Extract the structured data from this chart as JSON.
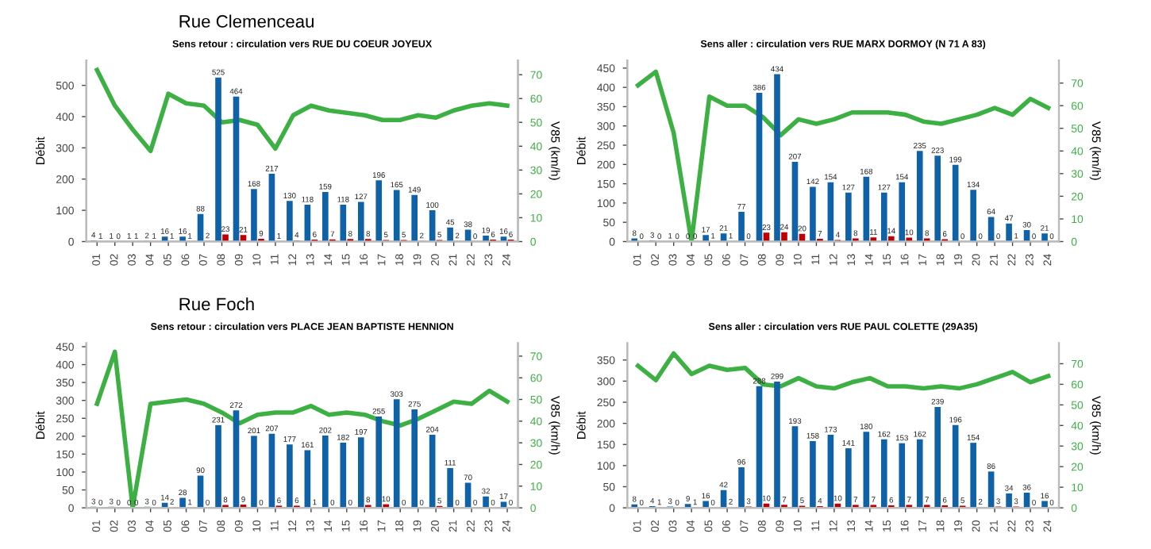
{
  "chart_data": [
    {
      "type": "bar",
      "title": "Rue Clemenceau",
      "subtitle": "Sens retour : circulation vers RUE DU COEUR JOYEUX",
      "ylabel": "Débit",
      "y2label": "V85 (km/h)",
      "categories": [
        "01",
        "02",
        "03",
        "04",
        "05",
        "06",
        "07",
        "08",
        "09",
        "10",
        "11",
        "12",
        "13",
        "14",
        "15",
        "16",
        "17",
        "18",
        "19",
        "20",
        "21",
        "22",
        "23",
        "24"
      ],
      "ylim": [
        0,
        580
      ],
      "yticks": [
        0,
        100,
        200,
        300,
        400,
        500
      ],
      "y2lim": [
        0,
        76
      ],
      "y2ticks": [
        0,
        10,
        20,
        30,
        40,
        50,
        60,
        70
      ],
      "series": [
        {
          "color": "#0f62a8",
          "values": [
            4,
            1,
            1,
            2,
            16,
            16,
            88,
            525,
            464,
            168,
            217,
            130,
            118,
            159,
            118,
            127,
            196,
            165,
            149,
            100,
            45,
            38,
            19,
            16
          ],
          "value_labels": [
            "4",
            "1",
            "1",
            "2",
            "16",
            "16",
            "88",
            "525",
            "464",
            "168",
            "217",
            "130",
            "118",
            "159",
            "118",
            "127",
            "196",
            "165",
            "149",
            "100",
            "45",
            "38",
            "19",
            "16"
          ]
        },
        {
          "color": "#c00000",
          "values": [
            1,
            0,
            1,
            1,
            1,
            1,
            2,
            23,
            21,
            9,
            1,
            4,
            6,
            7,
            8,
            8,
            5,
            5,
            2,
            5,
            2,
            0,
            6,
            6
          ],
          "value_labels": [
            "1",
            "0",
            "1",
            "1",
            "1",
            "1",
            "2",
            "23",
            "21",
            "9",
            "1",
            "4",
            "6",
            "7",
            "8",
            "8",
            "5",
            "5",
            "2",
            "5",
            "2",
            "0",
            "6",
            "6"
          ]
        },
        {
          "type": "line",
          "axis": "y2",
          "color": "#3cb043",
          "values": [
            72,
            57,
            47,
            38,
            62,
            58,
            57,
            50,
            51,
            49,
            39,
            53,
            57,
            55,
            54,
            53,
            51,
            51,
            53,
            52,
            55,
            57,
            58,
            57
          ]
        }
      ]
    },
    {
      "type": "bar",
      "subtitle": "Sens aller : circulation vers RUE MARX DORMOY (N 71 A 83)",
      "ylabel": "Débit",
      "y2label": "V85 (km/h)",
      "categories": [
        "01",
        "02",
        "03",
        "04",
        "05",
        "06",
        "07",
        "08",
        "09",
        "10",
        "11",
        "12",
        "13",
        "14",
        "15",
        "16",
        "17",
        "18",
        "19",
        "20",
        "21",
        "22",
        "23",
        "24"
      ],
      "ylim": [
        0,
        470
      ],
      "yticks": [
        0,
        50,
        100,
        150,
        200,
        250,
        300,
        350,
        400,
        450
      ],
      "y2lim": [
        0,
        80
      ],
      "y2ticks": [
        0,
        10,
        20,
        30,
        40,
        50,
        60,
        70
      ],
      "series": [
        {
          "color": "#0f62a8",
          "values": [
            8,
            3,
            1,
            0,
            17,
            21,
            77,
            386,
            434,
            207,
            142,
            154,
            127,
            168,
            127,
            154,
            235,
            223,
            199,
            134,
            64,
            47,
            30,
            21
          ],
          "value_labels": [
            "8",
            "3",
            "1",
            "0",
            "17",
            "21",
            "77",
            "386",
            "434",
            "207",
            "142",
            "154",
            "127",
            "168",
            "127",
            "154",
            "235",
            "223",
            "199",
            "134",
            "64",
            "47",
            "30",
            "21"
          ]
        },
        {
          "color": "#c00000",
          "values": [
            0,
            0,
            0,
            0,
            1,
            1,
            0,
            23,
            24,
            20,
            7,
            4,
            8,
            11,
            14,
            10,
            8,
            6,
            0,
            0,
            0,
            1,
            0,
            0
          ],
          "value_labels": [
            "0",
            "0",
            "0",
            "0",
            "1",
            "1",
            "0",
            "23",
            "24",
            "20",
            "7",
            "4",
            "8",
            "11",
            "14",
            "10",
            "8",
            "6",
            "0",
            "0",
            "0",
            "1",
            "0",
            "0"
          ]
        },
        {
          "type": "line",
          "axis": "y2",
          "color": "#3cb043",
          "values": [
            69,
            75,
            48,
            0,
            64,
            60,
            60,
            55,
            47,
            54,
            52,
            54,
            57,
            57,
            57,
            56,
            53,
            52,
            54,
            56,
            59,
            56,
            63,
            59
          ]
        }
      ]
    },
    {
      "type": "bar",
      "title": "Rue Foch",
      "subtitle": "Sens retour : circulation vers PLACE JEAN BAPTISTE HENNION",
      "ylabel": "Débit",
      "y2label": "V85 (km/h)",
      "categories": [
        "01",
        "02",
        "03",
        "04",
        "05",
        "06",
        "07",
        "08",
        "09",
        "10",
        "11",
        "12",
        "13",
        "14",
        "15",
        "16",
        "17",
        "18",
        "19",
        "20",
        "21",
        "22",
        "23",
        "24"
      ],
      "ylim": [
        0,
        460
      ],
      "yticks": [
        0,
        50,
        100,
        150,
        200,
        250,
        300,
        350,
        400,
        450
      ],
      "y2lim": [
        0,
        76
      ],
      "y2ticks": [
        0,
        10,
        20,
        30,
        40,
        50,
        60,
        70
      ],
      "series": [
        {
          "color": "#0f62a8",
          "values": [
            3,
            3,
            0,
            3,
            14,
            28,
            90,
            231,
            272,
            201,
            207,
            177,
            161,
            202,
            182,
            197,
            255,
            303,
            275,
            204,
            111,
            70,
            32,
            17
          ],
          "value_labels": [
            "3",
            "3",
            "0",
            "3",
            "14",
            "28",
            "90",
            "231",
            "272",
            "201",
            "207",
            "177",
            "161",
            "202",
            "182",
            "197",
            "255",
            "303",
            "275",
            "204",
            "111",
            "70",
            "32",
            "17"
          ]
        },
        {
          "color": "#c00000",
          "values": [
            0,
            0,
            0,
            0,
            2,
            1,
            0,
            8,
            9,
            0,
            6,
            6,
            1,
            0,
            0,
            8,
            10,
            0,
            0,
            5,
            0,
            0,
            0,
            0
          ],
          "value_labels": [
            "0",
            "0",
            "0",
            "0",
            "2",
            "1",
            "0",
            "8",
            "9",
            "0",
            "6",
            "6",
            "1",
            "0",
            "0",
            "8",
            "10",
            "0",
            "0",
            "5",
            "0",
            "0",
            "0",
            "0"
          ]
        },
        {
          "type": "line",
          "axis": "y2",
          "color": "#3cb043",
          "values": [
            48,
            72,
            0,
            48,
            49,
            50,
            48,
            44,
            39,
            43,
            44,
            44,
            47,
            43,
            44,
            43,
            40,
            38,
            41,
            45,
            49,
            48,
            54,
            49
          ]
        }
      ]
    },
    {
      "type": "bar",
      "subtitle": "Sens aller : circulation vers RUE PAUL COLETTE (29A35)",
      "ylabel": "Débit",
      "y2label": "V85 (km/h)",
      "categories": [
        "01",
        "02",
        "03",
        "04",
        "05",
        "06",
        "07",
        "08",
        "09",
        "10",
        "11",
        "12",
        "13",
        "14",
        "15",
        "16",
        "17",
        "18",
        "19",
        "20",
        "21",
        "22",
        "23",
        "24"
      ],
      "ylim": [
        0,
        390
      ],
      "yticks": [
        0,
        50,
        100,
        150,
        200,
        250,
        300,
        350
      ],
      "y2lim": [
        0,
        80
      ],
      "y2ticks": [
        0,
        10,
        20,
        30,
        40,
        50,
        60,
        70
      ],
      "series": [
        {
          "color": "#0f62a8",
          "values": [
            8,
            4,
            3,
            9,
            16,
            42,
            96,
            288,
            299,
            193,
            158,
            173,
            141,
            180,
            162,
            153,
            162,
            239,
            196,
            154,
            86,
            34,
            36,
            16
          ],
          "value_labels": [
            "8",
            "4",
            "3",
            "9",
            "16",
            "42",
            "96",
            "288",
            "299",
            "193",
            "158",
            "173",
            "141",
            "180",
            "162",
            "153",
            "162",
            "239",
            "196",
            "154",
            "86",
            "34",
            "36",
            "16"
          ]
        },
        {
          "color": "#c00000",
          "values": [
            0,
            1,
            0,
            1,
            0,
            2,
            3,
            10,
            7,
            5,
            4,
            10,
            7,
            7,
            6,
            7,
            7,
            6,
            5,
            2,
            3,
            3,
            0,
            0
          ],
          "value_labels": [
            "0",
            "1",
            "0",
            "1",
            "0",
            "2",
            "3",
            "10",
            "7",
            "5",
            "4",
            "10",
            "7",
            "7",
            "6",
            "7",
            "7",
            "6",
            "5",
            "2",
            "3",
            "3",
            "0",
            "0"
          ]
        },
        {
          "type": "line",
          "axis": "y2",
          "color": "#3cb043",
          "values": [
            69,
            62,
            75,
            65,
            69,
            67,
            68,
            60,
            59,
            63,
            59,
            58,
            61,
            63,
            59,
            59,
            58,
            59,
            58,
            60,
            63,
            66,
            61,
            64
          ]
        }
      ]
    }
  ]
}
